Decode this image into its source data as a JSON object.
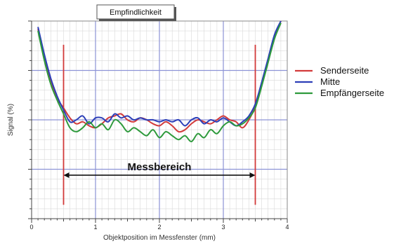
{
  "chart_data": {
    "type": "line",
    "title": "Empfindlichkeit",
    "xlabel": "Objektposition im Messfenster (mm)",
    "ylabel": "Signal (%)",
    "xlim": [
      0,
      4
    ],
    "ylim": [
      0,
      100
    ],
    "xticks": [
      "0",
      "1",
      "2",
      "3",
      "4"
    ],
    "grid": true,
    "legend_position": "right",
    "annotation": {
      "label": "Messbereich",
      "x_start": 0.5,
      "x_end": 3.5,
      "y": 22
    },
    "vertical_markers": [
      0.5,
      3.5
    ],
    "series": [
      {
        "name": "Senderseite",
        "color": "#d23a3a",
        "x": [
          0.1,
          0.2,
          0.3,
          0.4,
          0.5,
          0.6,
          0.7,
          0.8,
          0.9,
          1.0,
          1.1,
          1.2,
          1.3,
          1.4,
          1.5,
          1.6,
          1.7,
          1.8,
          1.9,
          2.0,
          2.1,
          2.2,
          2.3,
          2.4,
          2.5,
          2.6,
          2.7,
          2.8,
          2.9,
          3.0,
          3.1,
          3.2,
          3.3,
          3.4,
          3.5,
          3.6,
          3.7,
          3.8,
          3.9
        ],
        "values": [
          96,
          82,
          70,
          61,
          56,
          51,
          48,
          49,
          47,
          46,
          48,
          51,
          52,
          53,
          50,
          49,
          51,
          50,
          48,
          47,
          49,
          47,
          44,
          45,
          48,
          50,
          49,
          48,
          50,
          52,
          50,
          49,
          46,
          50,
          57,
          68,
          80,
          92,
          100
        ]
      },
      {
        "name": "Mitte",
        "color": "#2c3fb8",
        "x": [
          0.1,
          0.2,
          0.3,
          0.4,
          0.5,
          0.6,
          0.7,
          0.8,
          0.9,
          1.0,
          1.1,
          1.2,
          1.3,
          1.4,
          1.5,
          1.6,
          1.7,
          1.8,
          1.9,
          2.0,
          2.1,
          2.2,
          2.3,
          2.4,
          2.5,
          2.6,
          2.7,
          2.8,
          2.9,
          3.0,
          3.1,
          3.2,
          3.3,
          3.4,
          3.5,
          3.6,
          3.7,
          3.8,
          3.9
        ],
        "values": [
          97,
          83,
          71,
          62,
          55,
          49,
          50,
          52,
          48,
          51,
          51,
          49,
          53,
          51,
          52,
          50,
          51,
          50,
          50,
          49,
          50,
          49,
          50,
          47,
          50,
          51,
          48,
          50,
          49,
          51,
          49,
          47,
          49,
          52,
          58,
          69,
          81,
          93,
          100
        ]
      },
      {
        "name": "Empfängerseite",
        "color": "#2e9a3c",
        "x": [
          0.1,
          0.2,
          0.3,
          0.4,
          0.5,
          0.6,
          0.7,
          0.8,
          0.9,
          1.0,
          1.1,
          1.2,
          1.3,
          1.4,
          1.5,
          1.6,
          1.7,
          1.8,
          1.9,
          2.0,
          2.1,
          2.2,
          2.3,
          2.4,
          2.5,
          2.6,
          2.7,
          2.8,
          2.9,
          3.0,
          3.1,
          3.2,
          3.3,
          3.4,
          3.5,
          3.6,
          3.7,
          3.8,
          3.9
        ],
        "values": [
          95,
          80,
          68,
          60,
          53,
          46,
          44,
          46,
          49,
          46,
          48,
          45,
          50,
          48,
          44,
          46,
          44,
          42,
          45,
          41,
          44,
          42,
          40,
          42,
          39,
          43,
          41,
          45,
          43,
          47,
          49,
          47,
          48,
          51,
          56,
          67,
          79,
          91,
          99
        ]
      }
    ]
  }
}
